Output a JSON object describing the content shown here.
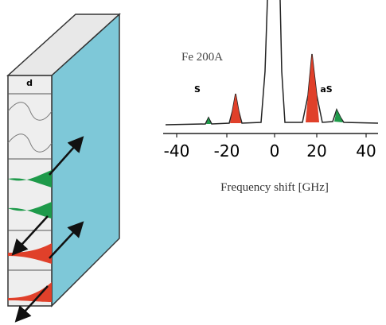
{
  "slab": {
    "thickness_label": "d"
  },
  "spectrum": {
    "sample": "Fe 200A",
    "stokes": "S",
    "anti_stokes": "aS",
    "ticks": [
      "-40",
      "-20",
      "0",
      "20",
      "40"
    ],
    "axis_title": "Frequency shift [GHz]"
  }
}
